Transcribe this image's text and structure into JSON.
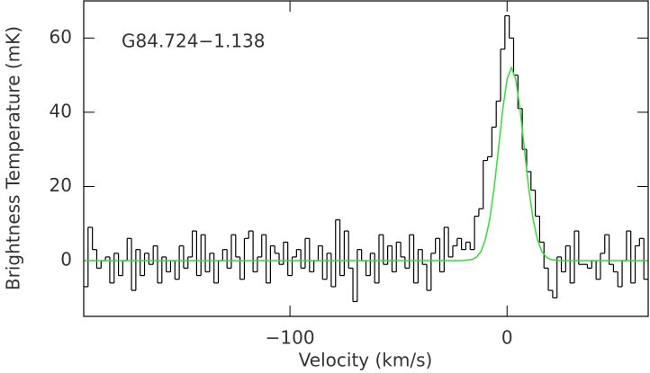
{
  "chart_data": {
    "type": "step",
    "annotation": "G84.724−1.138",
    "xlabel": "Velocity (km/s)",
    "ylabel": "Brightness Temperature (mK)",
    "xlim": [
      -195,
      65
    ],
    "ylim": [
      -15,
      70
    ],
    "xticks": [
      {
        "value": -100,
        "label": "−100"
      },
      0
    ],
    "yticks": [
      0,
      20,
      40,
      60
    ],
    "series": [
      {
        "color": "#000000",
        "x": [
          -194,
          -192,
          -190,
          -188,
          -186,
          -184,
          -182,
          -180,
          -178,
          -176,
          -174,
          -172,
          -170,
          -168,
          -166,
          -164,
          -162,
          -160,
          -158,
          -156,
          -154,
          -152,
          -150,
          -148,
          -146,
          -144,
          -142,
          -140,
          -138,
          -136,
          -134,
          -132,
          -130,
          -128,
          -126,
          -124,
          -122,
          -120,
          -118,
          -116,
          -114,
          -112,
          -110,
          -108,
          -106,
          -104,
          -102,
          -100,
          -98,
          -96,
          -94,
          -92,
          -90,
          -88,
          -86,
          -84,
          -82,
          -80,
          -78,
          -76,
          -74,
          -72,
          -70,
          -68,
          -66,
          -64,
          -62,
          -60,
          -58,
          -56,
          -54,
          -52,
          -50,
          -48,
          -46,
          -44,
          -42,
          -40,
          -38,
          -36,
          -34,
          -32,
          -30,
          -28,
          -26,
          -24,
          -22,
          -20,
          -18,
          -16,
          -14,
          -12,
          -10,
          -8,
          -6,
          -4,
          -2,
          0,
          2,
          4,
          6,
          8,
          10,
          12,
          14,
          16,
          18,
          20,
          22,
          24,
          26,
          28,
          30,
          32,
          34,
          36,
          38,
          40,
          42,
          44,
          46,
          48,
          50,
          52,
          54,
          56,
          58,
          60,
          62,
          64
        ],
        "values": [
          -7,
          9,
          3,
          -2,
          0,
          1,
          -6,
          2,
          -4,
          0,
          6,
          -8,
          3,
          -4,
          2,
          -1,
          4,
          -6,
          1,
          -3,
          0,
          -5,
          4,
          -2,
          1,
          8,
          -4,
          7,
          -3,
          2,
          -6,
          0,
          3,
          -2,
          7,
          1,
          -5,
          6,
          8,
          -3,
          1,
          7,
          -6,
          4,
          2,
          -1,
          5,
          -4,
          1,
          3,
          -2,
          6,
          -3,
          0,
          4,
          -5,
          2,
          -7,
          11,
          -4,
          8,
          -2,
          -11,
          3,
          0,
          -4,
          2,
          -6,
          7,
          -1,
          4,
          -3,
          5,
          1,
          -2,
          7,
          -6,
          3,
          -1,
          -8,
          2,
          6,
          -3,
          9,
          1,
          4,
          6,
          3,
          5,
          3,
          12,
          14,
          27,
          28,
          36,
          43,
          57,
          66,
          60,
          50,
          41,
          30,
          24,
          19,
          12,
          5,
          -2,
          -8,
          -10,
          1,
          -3,
          4,
          -6,
          8,
          -1,
          -1,
          -2,
          0,
          -5,
          2,
          7,
          -1,
          -3,
          -7,
          0,
          8,
          -6,
          4,
          6,
          -5
        ]
      },
      {
        "type": "line",
        "color": "#33dd33",
        "x": [
          -195,
          -24,
          -20,
          -16,
          -14,
          -12,
          -10,
          -8,
          -6,
          -4,
          -2,
          0,
          2,
          4,
          6,
          8,
          10,
          12,
          14,
          16,
          18,
          20,
          24,
          28,
          65
        ],
        "values": [
          0,
          0,
          0.03,
          0.35,
          1.0,
          2.5,
          5.7,
          11.1,
          19.4,
          29.9,
          40.7,
          48.9,
          52,
          48.9,
          40.7,
          29.9,
          19.4,
          11.1,
          5.7,
          2.5,
          1.0,
          0.35,
          0.03,
          0,
          0
        ]
      }
    ]
  }
}
